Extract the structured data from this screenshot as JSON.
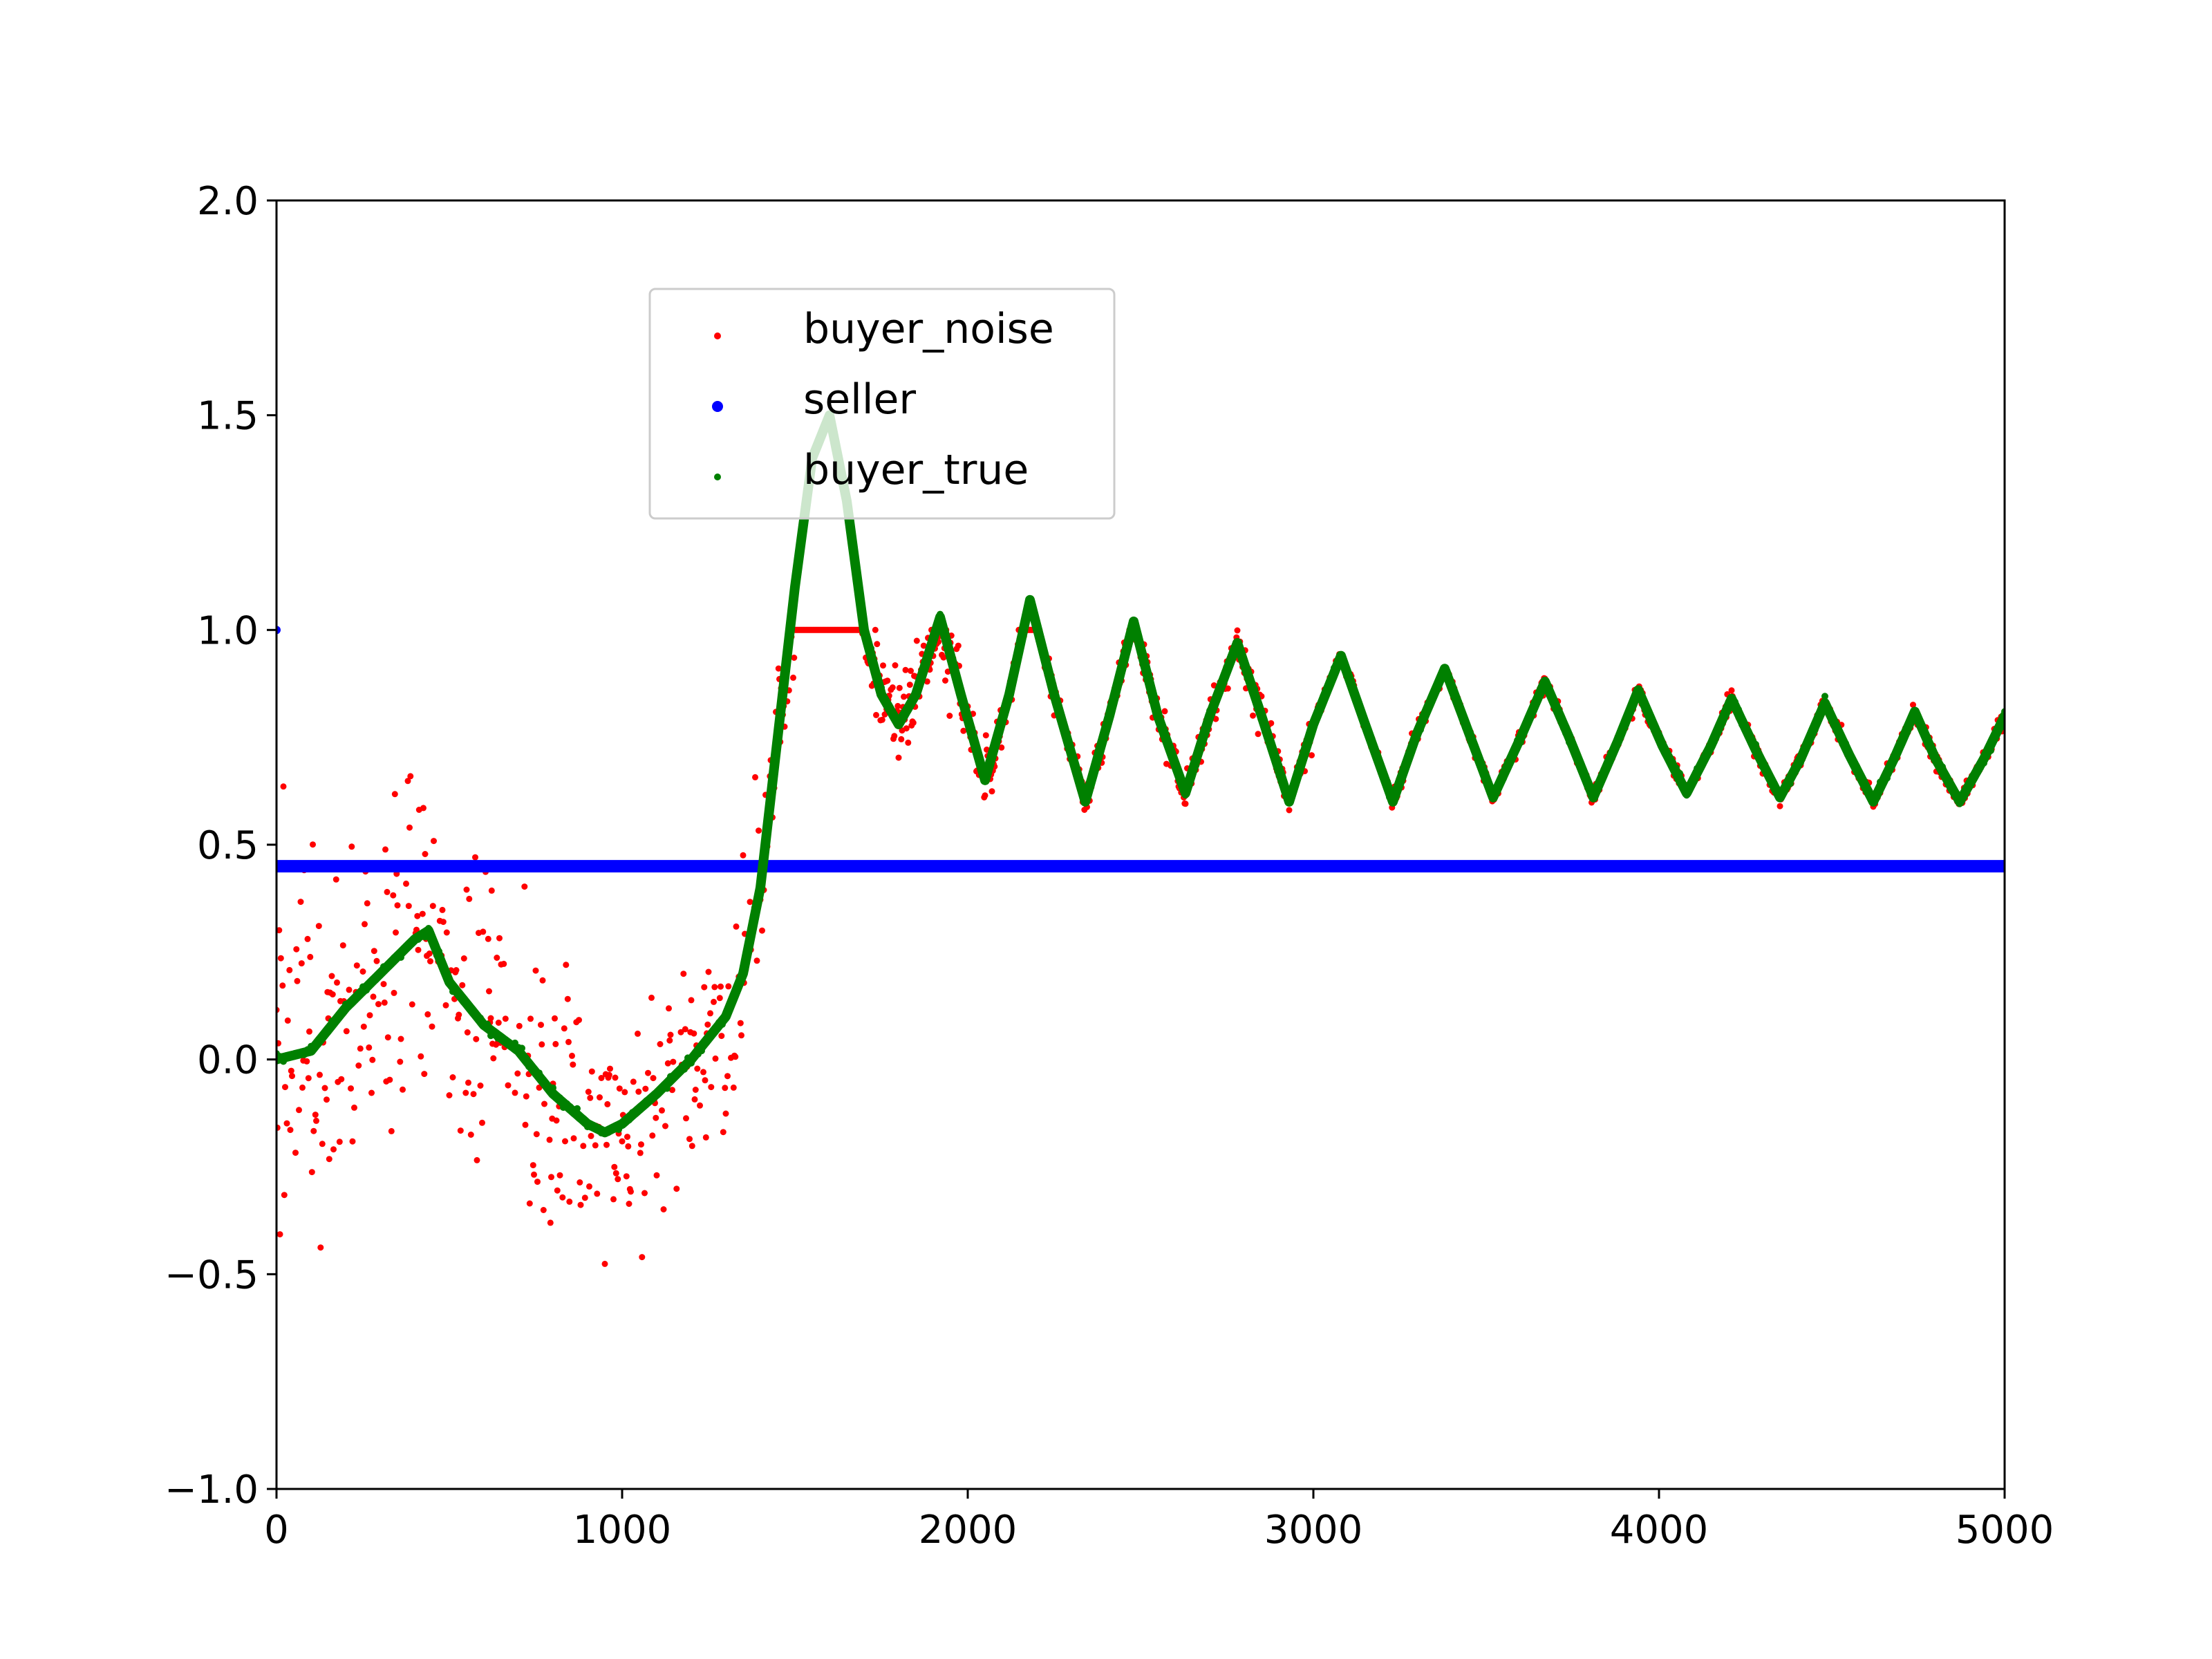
{
  "chart_data": {
    "type": "scatter",
    "title": "",
    "xlabel": "",
    "ylabel": "",
    "xlim": [
      0,
      5000
    ],
    "ylim": [
      -1.0,
      2.0
    ],
    "x_ticks": [
      0,
      1000,
      2000,
      3000,
      4000,
      5000
    ],
    "x_tick_labels": [
      "0",
      "1000",
      "2000",
      "3000",
      "4000",
      "5000"
    ],
    "y_ticks": [
      -1.0,
      -0.5,
      0.0,
      0.5,
      1.0,
      1.5,
      2.0
    ],
    "y_tick_labels": [
      "−1.0",
      "−0.5",
      "0.0",
      "0.5",
      "1.0",
      "1.5",
      "2.0"
    ],
    "grid": false,
    "legend": {
      "placement": "upper-center"
    },
    "series": [
      {
        "name": "buyer_noise",
        "color": "#ff0000",
        "description_points": [
          [
            0,
            0.0
          ],
          [
            50,
            0.45
          ],
          [
            100,
            0.2
          ],
          [
            200,
            -0.1
          ],
          [
            300,
            0.35
          ],
          [
            400,
            0.45
          ],
          [
            500,
            0.1
          ],
          [
            600,
            -0.1
          ],
          [
            700,
            -0.05
          ],
          [
            800,
            -0.2
          ],
          [
            900,
            -0.3
          ],
          [
            1000,
            -0.3
          ],
          [
            1100,
            -0.2
          ],
          [
            1200,
            -0.05
          ],
          [
            1300,
            0.1
          ],
          [
            1400,
            0.35
          ],
          [
            1450,
            0.8
          ],
          [
            1500,
            1.0
          ],
          [
            1600,
            1.0
          ],
          [
            1700,
            1.0
          ],
          [
            1780,
            0.82
          ],
          [
            1850,
            0.85
          ],
          [
            1920,
            1.0
          ],
          [
            2050,
            0.62
          ],
          [
            2180,
            1.0
          ],
          [
            2340,
            0.6
          ],
          [
            2480,
            1.0
          ],
          [
            2630,
            0.6
          ],
          [
            2780,
            0.97
          ],
          [
            2930,
            0.6
          ],
          [
            3080,
            0.95
          ],
          [
            3230,
            0.6
          ],
          [
            3380,
            0.92
          ],
          [
            3520,
            0.6
          ],
          [
            3670,
            0.89
          ],
          [
            3810,
            0.6
          ],
          [
            3940,
            0.86
          ],
          [
            4080,
            0.61
          ],
          [
            4210,
            0.85
          ],
          [
            4350,
            0.61
          ],
          [
            4480,
            0.83
          ],
          [
            4620,
            0.6
          ],
          [
            4740,
            0.82
          ],
          [
            4870,
            0.6
          ],
          [
            5000,
            0.81
          ]
        ]
      },
      {
        "name": "seller",
        "color": "#0000ff",
        "x": [
          0,
          5000
        ],
        "y": [
          0.45,
          0.45
        ],
        "start_point": [
          0,
          1.0
        ]
      },
      {
        "name": "buyer_true",
        "color": "#008000",
        "x": [
          0,
          100,
          200,
          300,
          400,
          440,
          500,
          600,
          700,
          800,
          900,
          950,
          1000,
          1100,
          1200,
          1300,
          1350,
          1400,
          1450,
          1500,
          1550,
          1600,
          1650,
          1700,
          1750,
          1800,
          1850,
          1920,
          1980,
          2050,
          2120,
          2180,
          2250,
          2340,
          2410,
          2480,
          2550,
          2630,
          2700,
          2780,
          2850,
          2930,
          3000,
          3080,
          3150,
          3230,
          3300,
          3380,
          3450,
          3520,
          3600,
          3670,
          3740,
          3810,
          3880,
          3940,
          4010,
          4080,
          4150,
          4210,
          4280,
          4350,
          4410,
          4480,
          4550,
          4620,
          4680,
          4740,
          4800,
          4870,
          4940,
          5000
        ],
        "y": [
          0.0,
          0.02,
          0.12,
          0.2,
          0.28,
          0.3,
          0.18,
          0.08,
          0.02,
          -0.08,
          -0.15,
          -0.17,
          -0.15,
          -0.08,
          0.0,
          0.1,
          0.2,
          0.4,
          0.75,
          1.1,
          1.4,
          1.5,
          1.3,
          1.0,
          0.85,
          0.78,
          0.85,
          1.03,
          0.85,
          0.65,
          0.85,
          1.07,
          0.85,
          0.6,
          0.8,
          1.02,
          0.8,
          0.62,
          0.8,
          0.97,
          0.8,
          0.6,
          0.78,
          0.94,
          0.78,
          0.6,
          0.76,
          0.91,
          0.76,
          0.61,
          0.75,
          0.88,
          0.75,
          0.61,
          0.74,
          0.86,
          0.73,
          0.62,
          0.73,
          0.84,
          0.72,
          0.61,
          0.7,
          0.83,
          0.71,
          0.6,
          0.7,
          0.81,
          0.7,
          0.6,
          0.7,
          0.8
        ]
      }
    ]
  },
  "legend": {
    "items": [
      {
        "label": "buyer_noise",
        "color": "#ff0000"
      },
      {
        "label": "seller",
        "color": "#0000ff"
      },
      {
        "label": "buyer_true",
        "color": "#008000"
      }
    ]
  }
}
